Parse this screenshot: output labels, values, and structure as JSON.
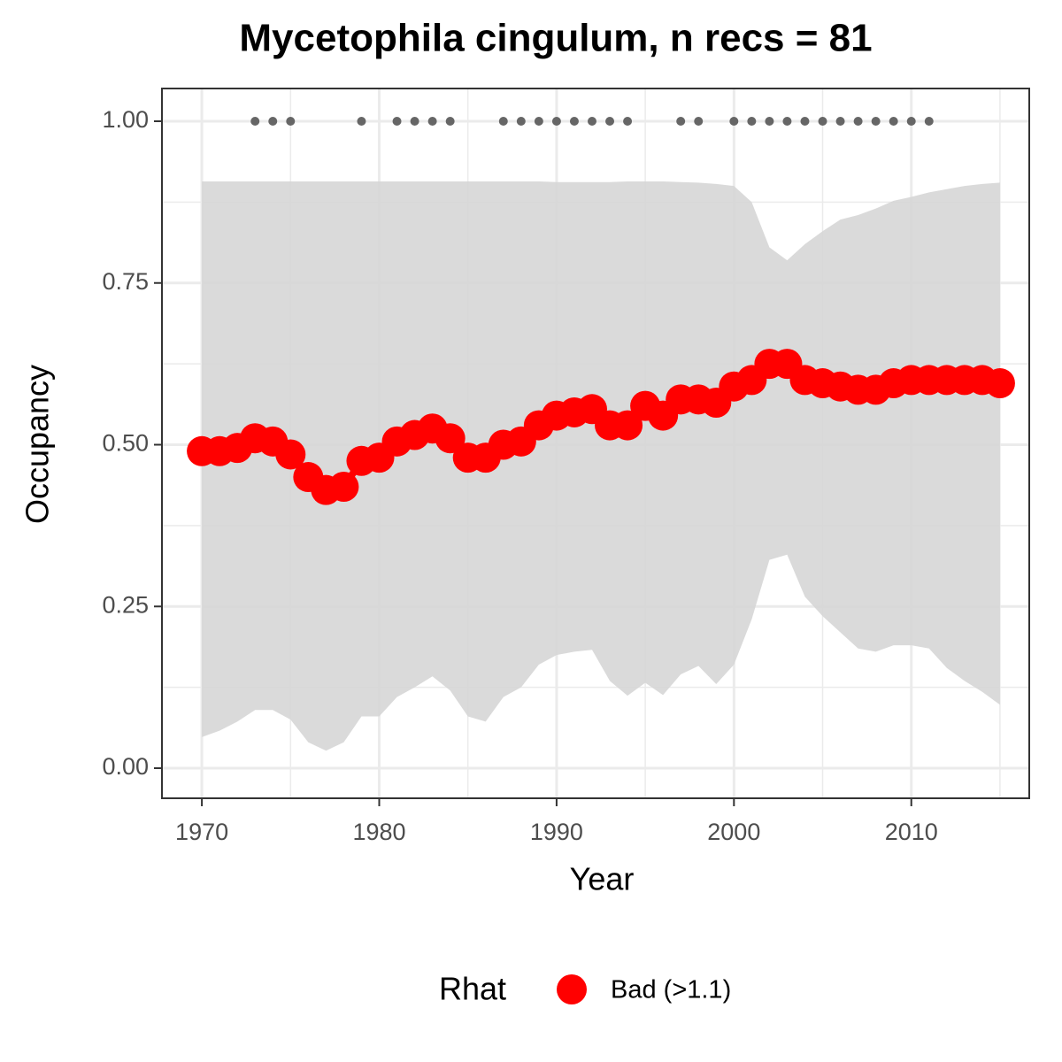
{
  "chart_data": {
    "type": "line",
    "title": "Mycetophila cingulum, n recs = 81",
    "x_label": "Year",
    "y_label": "Occupancy",
    "x": [
      1970,
      1971,
      1972,
      1973,
      1974,
      1975,
      1976,
      1977,
      1978,
      1979,
      1980,
      1981,
      1982,
      1983,
      1984,
      1985,
      1986,
      1987,
      1988,
      1989,
      1990,
      1991,
      1992,
      1993,
      1994,
      1995,
      1996,
      1997,
      1998,
      1999,
      2000,
      2001,
      2002,
      2003,
      2004,
      2005,
      2006,
      2007,
      2008,
      2009,
      2010,
      2011,
      2012,
      2013,
      2014,
      2015
    ],
    "series": [
      {
        "name": "Bad (>1.1)",
        "color": "#ff0000",
        "values": [
          0.49,
          0.49,
          0.495,
          0.51,
          0.505,
          0.485,
          0.45,
          0.43,
          0.435,
          0.475,
          0.48,
          0.505,
          0.515,
          0.525,
          0.51,
          0.48,
          0.48,
          0.5,
          0.505,
          0.53,
          0.545,
          0.55,
          0.555,
          0.53,
          0.53,
          0.56,
          0.545,
          0.57,
          0.57,
          0.565,
          0.59,
          0.6,
          0.625,
          0.625,
          0.6,
          0.595,
          0.59,
          0.585,
          0.585,
          0.595,
          0.6,
          0.6,
          0.6,
          0.6,
          0.6,
          0.595
        ]
      }
    ],
    "band": {
      "color": "#d6d6d6",
      "lower": [
        0.048,
        0.058,
        0.072,
        0.09,
        0.09,
        0.075,
        0.04,
        0.027,
        0.04,
        0.08,
        0.08,
        0.11,
        0.125,
        0.142,
        0.12,
        0.08,
        0.072,
        0.11,
        0.125,
        0.16,
        0.175,
        0.18,
        0.183,
        0.135,
        0.112,
        0.132,
        0.113,
        0.145,
        0.158,
        0.13,
        0.16,
        0.23,
        0.322,
        0.33,
        0.265,
        0.235,
        0.21,
        0.185,
        0.18,
        0.19,
        0.19,
        0.185,
        0.155,
        0.135,
        0.118,
        0.098
      ],
      "upper": [
        0.907,
        0.907,
        0.907,
        0.907,
        0.907,
        0.907,
        0.907,
        0.907,
        0.907,
        0.907,
        0.907,
        0.907,
        0.907,
        0.907,
        0.907,
        0.907,
        0.907,
        0.907,
        0.907,
        0.907,
        0.906,
        0.906,
        0.906,
        0.906,
        0.907,
        0.907,
        0.907,
        0.906,
        0.905,
        0.903,
        0.9,
        0.875,
        0.805,
        0.785,
        0.81,
        0.83,
        0.848,
        0.855,
        0.865,
        0.877,
        0.883,
        0.89,
        0.895,
        0.9,
        0.903,
        0.905
      ]
    },
    "records": {
      "color": "#666666",
      "x": [
        1973,
        1974,
        1975,
        1979,
        1981,
        1982,
        1983,
        1984,
        1987,
        1988,
        1989,
        1990,
        1991,
        1992,
        1993,
        1994,
        1997,
        1998,
        2000,
        2001,
        2002,
        2003,
        2004,
        2005,
        2006,
        2007,
        2008,
        2009,
        2010,
        2011
      ],
      "values": [
        1,
        1,
        1,
        1,
        1,
        1,
        1,
        1,
        1,
        1,
        1,
        1,
        1,
        1,
        1,
        1,
        1,
        1,
        1,
        1,
        1,
        1,
        1,
        1,
        1,
        1,
        1,
        1,
        1,
        1
      ]
    },
    "xlim": [
      1967.75,
      2016.65
    ],
    "ylim": [
      -0.0465,
      1.0506
    ],
    "xticks": [
      1970,
      1980,
      1990,
      2000,
      2010
    ],
    "yticks": [
      {
        "value": 0,
        "label": "0.00"
      },
      {
        "value": 0.25,
        "label": "0.25"
      },
      {
        "value": 0.5,
        "label": "0.50"
      },
      {
        "value": 0.75,
        "label": "0.75"
      },
      {
        "value": 1,
        "label": "1.00"
      }
    ],
    "minor_xticks": [
      1975,
      1985,
      1995,
      2005,
      2015
    ],
    "minor_yticks": [
      0.125,
      0.375,
      0.625,
      0.875
    ],
    "grid": true,
    "legend_title": "Rhat",
    "legend_position": "bottom"
  }
}
